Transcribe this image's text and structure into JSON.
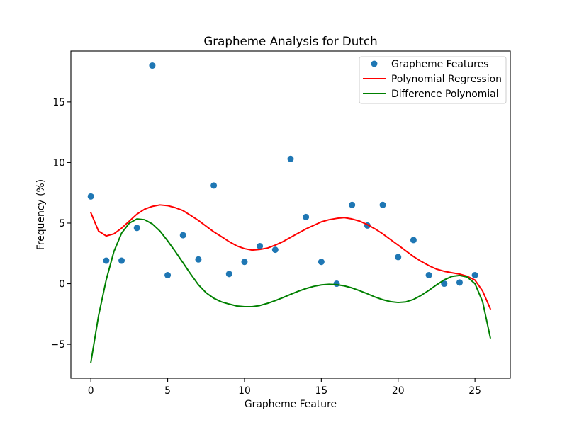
{
  "chart_data": {
    "type": "scatter",
    "title": "Grapheme Analysis for Dutch",
    "xlabel": "Grapheme Feature",
    "ylabel": "Frequency (%)",
    "xlim": [
      -1.3,
      27.3
    ],
    "ylim": [
      -7.8,
      19.2
    ],
    "xticks": [
      0,
      5,
      10,
      15,
      20,
      25
    ],
    "xtick_labels": [
      "0",
      "5",
      "10",
      "15",
      "20",
      "25"
    ],
    "yticks": [
      -5,
      0,
      5,
      10,
      15
    ],
    "ytick_labels": [
      "−5",
      "0",
      "5",
      "10",
      "15"
    ],
    "grid": false,
    "legend_position": "top-right",
    "series": [
      {
        "name": "Grapheme Features",
        "kind": "scatter",
        "color": "#1f77b4",
        "x": [
          0,
          1,
          2,
          3,
          4,
          5,
          6,
          7,
          8,
          9,
          10,
          11,
          12,
          13,
          14,
          15,
          16,
          17,
          18,
          19,
          20,
          21,
          22,
          23,
          24,
          25
        ],
        "y": [
          7.2,
          1.9,
          1.9,
          4.6,
          18.0,
          0.7,
          4.0,
          2.0,
          8.1,
          0.8,
          1.8,
          3.1,
          2.8,
          10.3,
          5.5,
          1.8,
          0.0,
          6.5,
          4.8,
          6.5,
          2.2,
          3.6,
          0.7,
          0.0,
          0.1,
          0.7
        ]
      },
      {
        "name": "Polynomial Regression",
        "kind": "line",
        "color": "#ff0000",
        "x": [
          0,
          0.5,
          1,
          1.5,
          2,
          2.5,
          3,
          3.5,
          4,
          4.5,
          5,
          5.5,
          6,
          6.5,
          7,
          7.5,
          8,
          8.5,
          9,
          9.5,
          10,
          10.5,
          11,
          11.5,
          12,
          12.5,
          13,
          13.5,
          14,
          14.5,
          15,
          15.5,
          16,
          16.5,
          17,
          17.5,
          18,
          18.5,
          19,
          19.5,
          20,
          20.5,
          21,
          21.5,
          22,
          22.5,
          23,
          23.5,
          24,
          24.5,
          25,
          25.5,
          26
        ],
        "y": [
          5.86,
          4.34,
          3.94,
          4.11,
          4.58,
          5.16,
          5.74,
          6.15,
          6.38,
          6.5,
          6.44,
          6.27,
          6.03,
          5.63,
          5.22,
          4.75,
          4.28,
          3.88,
          3.47,
          3.12,
          2.89,
          2.77,
          2.83,
          2.94,
          3.18,
          3.47,
          3.82,
          4.17,
          4.52,
          4.81,
          5.1,
          5.28,
          5.39,
          5.45,
          5.34,
          5.16,
          4.87,
          4.52,
          4.11,
          3.64,
          3.18,
          2.71,
          2.24,
          1.84,
          1.49,
          1.2,
          1.02,
          0.9,
          0.79,
          0.61,
          0.3,
          -0.61,
          -2.07
        ]
      },
      {
        "name": "Difference Polynomial",
        "kind": "line",
        "color": "#008000",
        "x": [
          0,
          0.5,
          1,
          1.5,
          2,
          2.5,
          3,
          3.5,
          4,
          4.5,
          5,
          5.5,
          6,
          6.5,
          7,
          7.5,
          8,
          8.5,
          9,
          9.5,
          10,
          10.5,
          11,
          11.5,
          12,
          12.5,
          13,
          13.5,
          14,
          14.5,
          15,
          15.5,
          16,
          16.5,
          17,
          17.5,
          18,
          18.5,
          19,
          19.5,
          20,
          20.5,
          21,
          21.5,
          22,
          22.5,
          23,
          23.5,
          24,
          24.5,
          25,
          25.5,
          26
        ],
        "y": [
          -6.5,
          -2.65,
          0.32,
          2.65,
          4.17,
          4.99,
          5.34,
          5.28,
          4.93,
          4.34,
          3.53,
          2.65,
          1.72,
          0.79,
          -0.09,
          -0.75,
          -1.2,
          -1.5,
          -1.68,
          -1.84,
          -1.9,
          -1.9,
          -1.8,
          -1.62,
          -1.4,
          -1.15,
          -0.88,
          -0.62,
          -0.4,
          -0.22,
          -0.1,
          -0.05,
          -0.08,
          -0.18,
          -0.35,
          -0.58,
          -0.83,
          -1.1,
          -1.32,
          -1.48,
          -1.55,
          -1.5,
          -1.3,
          -0.96,
          -0.55,
          -0.1,
          0.32,
          0.6,
          0.68,
          0.55,
          0.0,
          -1.49,
          -4.46
        ]
      }
    ]
  }
}
